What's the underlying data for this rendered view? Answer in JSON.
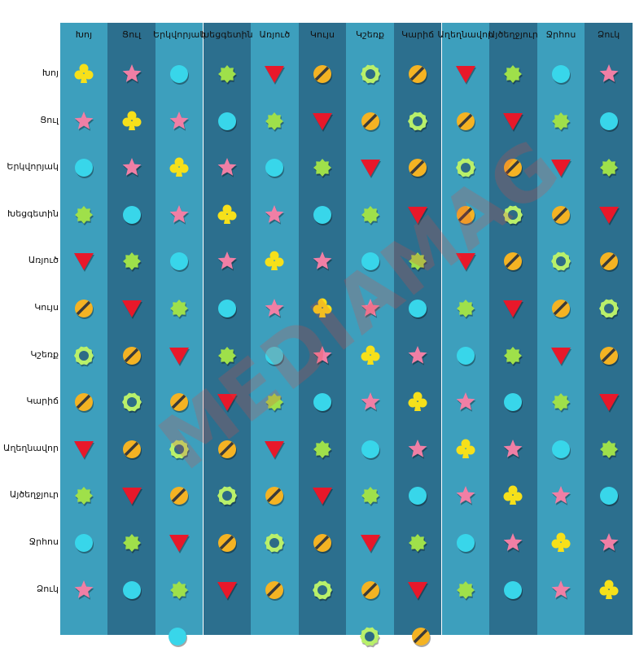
{
  "columns": [
    "Խոյ",
    "Ցուլ",
    "Երկվորյակ",
    "Խեցգետին",
    "Առյուծ",
    "Կույս",
    "Կշեռք",
    "Կարիճ",
    "Աղեղնավոր",
    "Այծեղջյուր",
    "Ջրհոս",
    "Ձուկ"
  ],
  "rows": [
    "Խոյ",
    "Ցուլ",
    "Երկվորյակ",
    "Խեցգետին",
    "Առյուծ",
    "Կույս",
    "Կշեռք",
    "Կարիճ",
    "Աղեղնավոր",
    "Այծեղջյուր",
    "Ջրհոս",
    "Ձուկ"
  ],
  "symbols": {
    "C": "clover-icon",
    "S": "star-icon",
    "B": "cyan-circle-icon",
    "G": "green-starburst-icon",
    "T": "red-triangle-icon",
    "Y": "striped-orange-circle-icon",
    "R": "ring-icon"
  },
  "grid": [
    [
      "C",
      "S",
      "B",
      "G",
      "T",
      "Y",
      "R",
      "Y",
      "T",
      "G",
      "B",
      "S"
    ],
    [
      "S",
      "C",
      "S",
      "B",
      "G",
      "T",
      "Y",
      "R",
      "Y",
      "T",
      "G",
      "B"
    ],
    [
      "B",
      "S",
      "C",
      "S",
      "B",
      "G",
      "T",
      "Y",
      "R",
      "Y",
      "T",
      "G"
    ],
    [
      "G",
      "B",
      "S",
      "C",
      "S",
      "B",
      "G",
      "T",
      "Y",
      "R",
      "Y",
      "T"
    ],
    [
      "T",
      "G",
      "B",
      "S",
      "C",
      "S",
      "B",
      "G",
      "T",
      "Y",
      "R",
      "Y"
    ],
    [
      "Y",
      "T",
      "G",
      "B",
      "S",
      "C",
      "S",
      "B",
      "G",
      "T",
      "Y",
      "R"
    ],
    [
      "R",
      "Y",
      "T",
      "G",
      "B",
      "S",
      "C",
      "S",
      "B",
      "G",
      "T",
      "Y"
    ],
    [
      "Y",
      "R",
      "Y",
      "T",
      "G",
      "B",
      "S",
      "C",
      "S",
      "B",
      "G",
      "T"
    ],
    [
      "T",
      "Y",
      "R",
      "Y",
      "T",
      "G",
      "B",
      "S",
      "C",
      "S",
      "B",
      "G"
    ],
    [
      "G",
      "T",
      "Y",
      "R",
      "Y",
      "T",
      "G",
      "B",
      "S",
      "C",
      "S",
      "B"
    ],
    [
      "B",
      "G",
      "T",
      "Y",
      "R",
      "Y",
      "T",
      "G",
      "B",
      "S",
      "C",
      "S"
    ],
    [
      "S",
      "B",
      "G",
      "T",
      "Y",
      "R",
      "Y",
      "T",
      "G",
      "B",
      "S",
      "C"
    ]
  ],
  "watermark": "MEDIAMAG",
  "colors": {
    "stripe_a": "#3d9fbd",
    "stripe_b": "#2c6f8e",
    "clover": "#f6e01a",
    "star": "#f07fa5",
    "circle": "#38d6ea",
    "starburst": "#9fe04a",
    "triangle": "#e8182a",
    "striped": "#f4b323",
    "ring": "#b9f06a"
  }
}
